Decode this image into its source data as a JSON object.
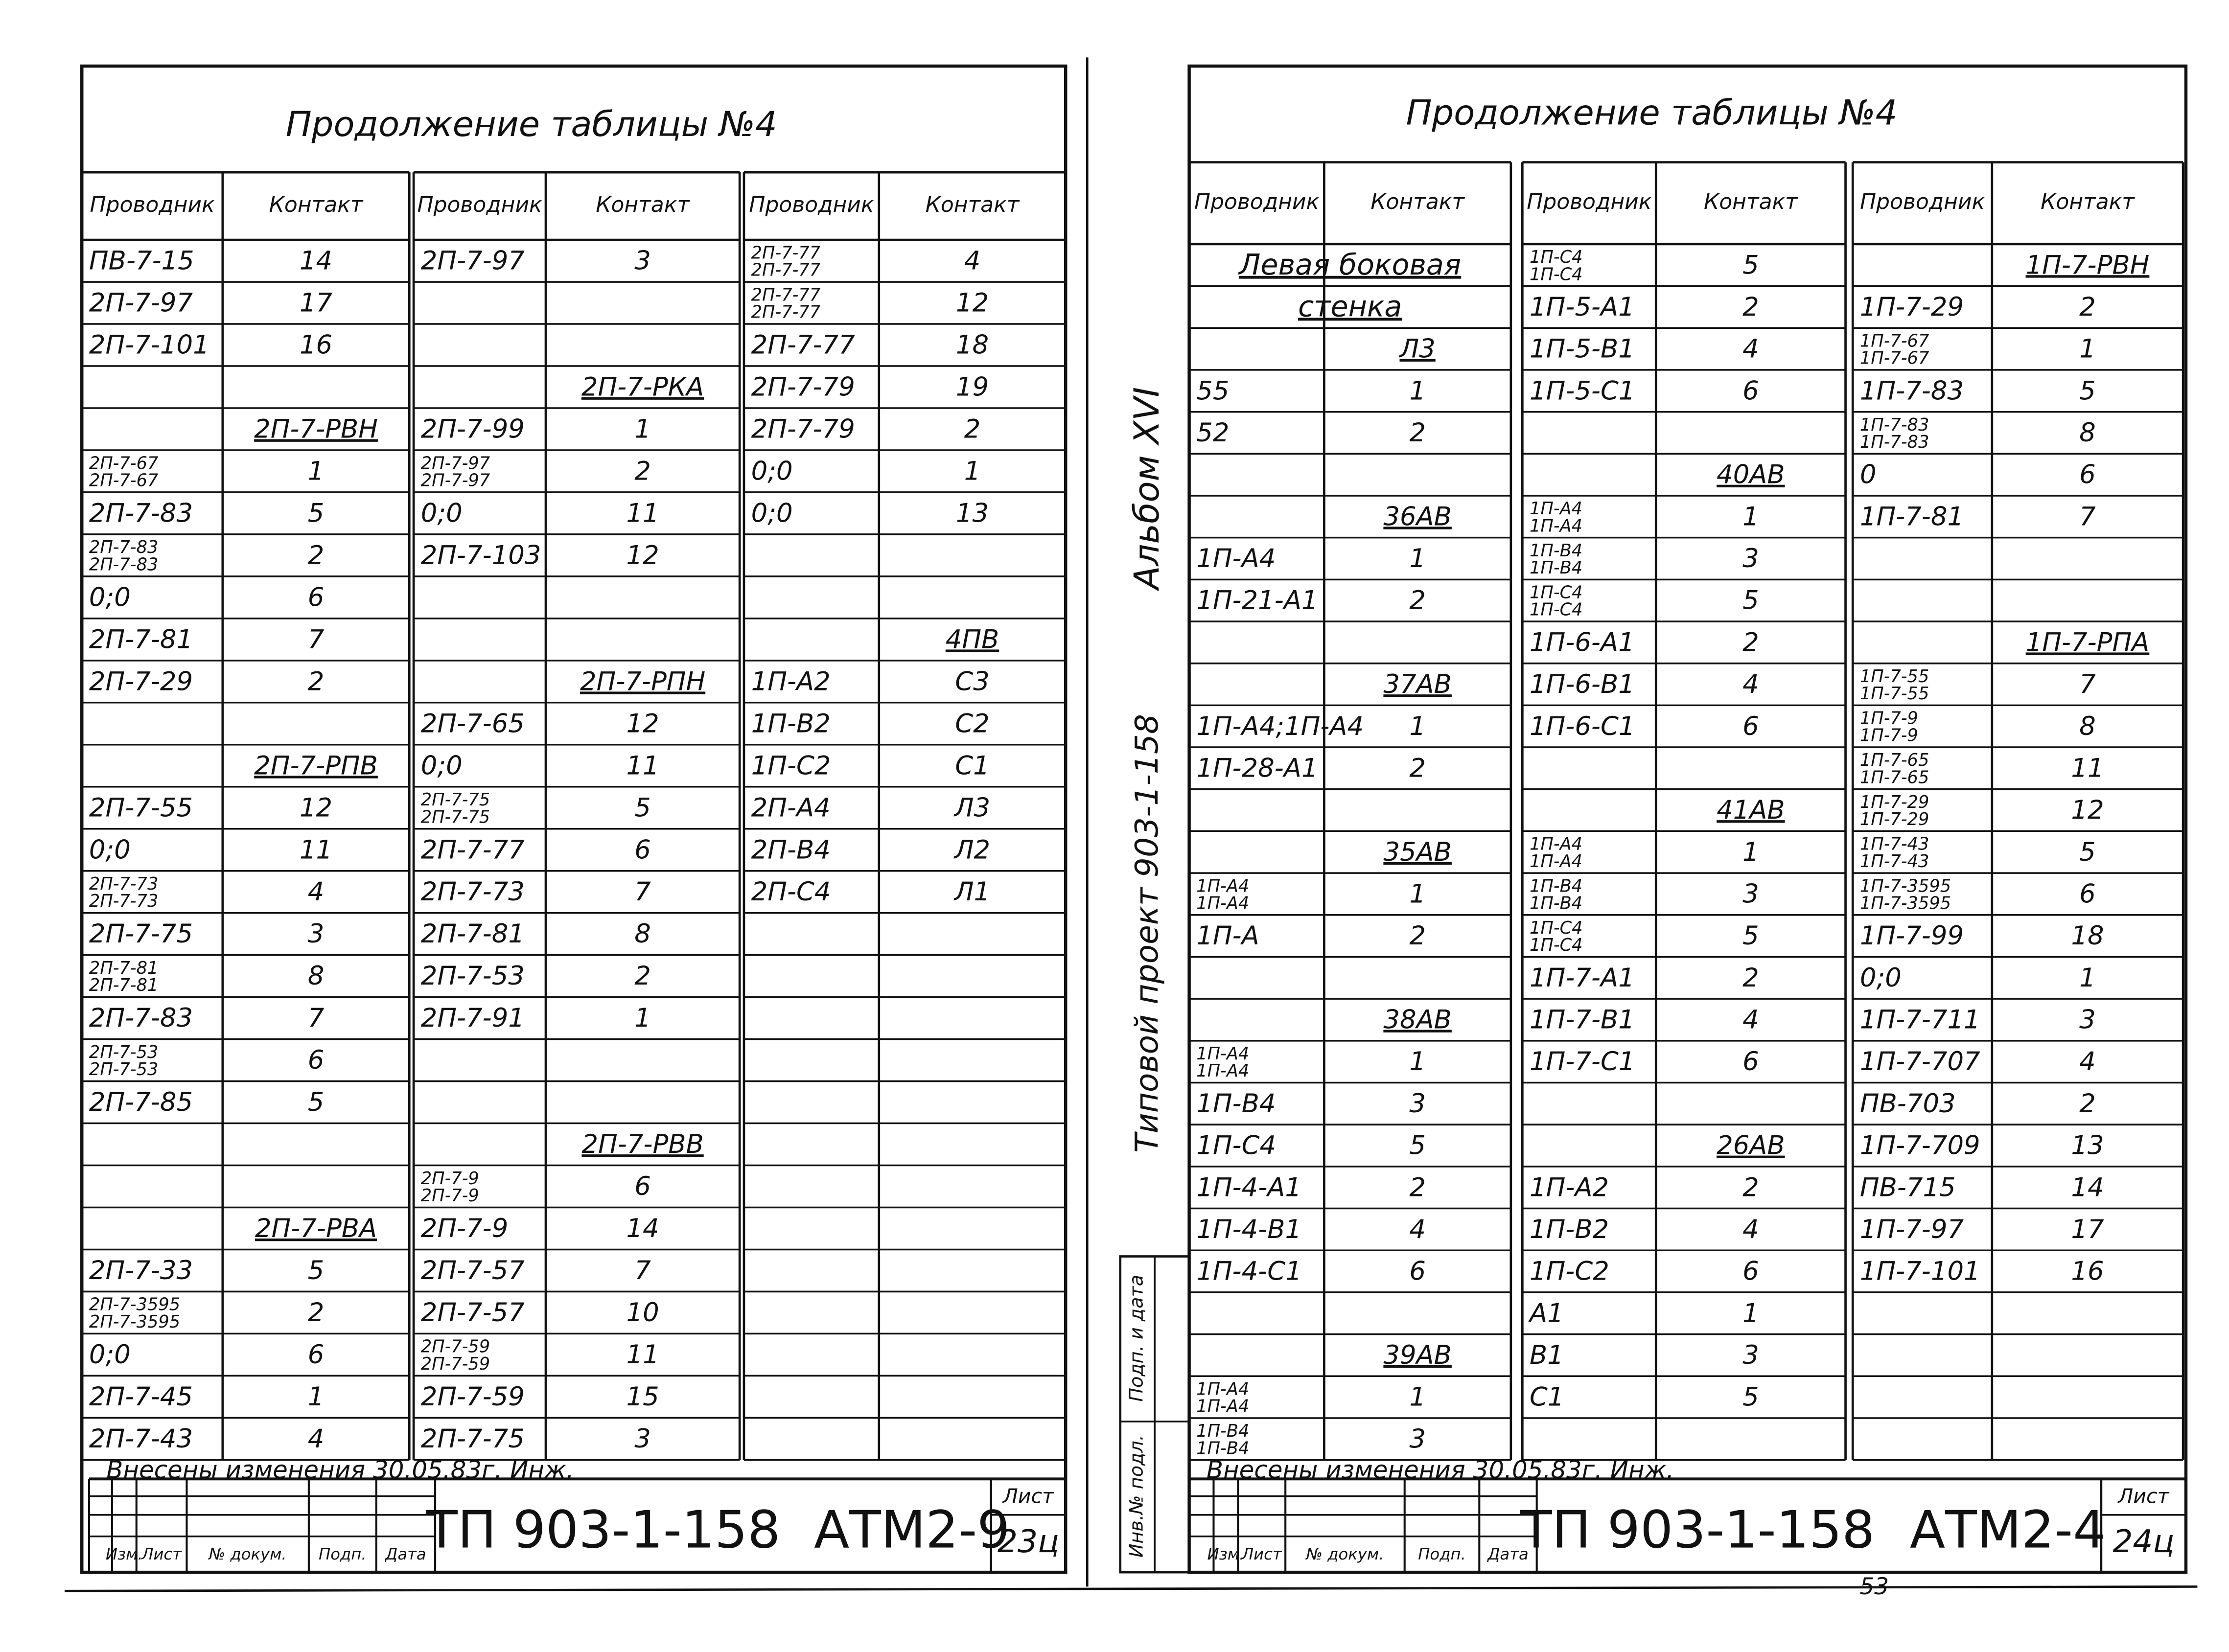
{
  "left_page": {
    "title": "Продолжение таблицы №4",
    "tables": [
      {
        "headers": [
          "Проводник",
          "Контакт"
        ],
        "rows": [
          [
            "ПВ-7-15",
            "14"
          ],
          [
            "2П-7-97",
            "17"
          ],
          [
            "2П-7-101",
            "16"
          ],
          [
            null,
            null
          ],
          [
            null,
            "2П-7-РВН"
          ],
          [
            [
              "2П-7-67",
              "2П-7-67"
            ],
            "1"
          ],
          [
            "2П-7-83",
            "5"
          ],
          [
            [
              "2П-7-83",
              "2П-7-83"
            ],
            "2"
          ],
          [
            "0;0",
            "6"
          ],
          [
            "2П-7-81",
            "7"
          ],
          [
            "2П-7-29",
            "2"
          ],
          [
            null,
            null
          ],
          [
            null,
            "2П-7-РПВ"
          ],
          [
            "2П-7-55",
            "12"
          ],
          [
            "0;0",
            "11"
          ],
          [
            [
              "2П-7-73",
              "2П-7-73"
            ],
            "4"
          ],
          [
            "2П-7-75",
            "3"
          ],
          [
            [
              "2П-7-81",
              "2П-7-81"
            ],
            "8"
          ],
          [
            "2П-7-83",
            "7"
          ],
          [
            [
              "2П-7-53",
              "2П-7-53"
            ],
            "6"
          ],
          [
            "2П-7-85",
            "5"
          ],
          [
            null,
            null
          ],
          [
            null,
            null
          ],
          [
            null,
            "2П-7-РВА"
          ],
          [
            "2П-7-33",
            "5"
          ],
          [
            [
              "2П-7-3595",
              "2П-7-3595"
            ],
            "2"
          ],
          [
            "0;0",
            "6"
          ],
          [
            "2П-7-45",
            "1"
          ],
          [
            "2П-7-43",
            "4"
          ]
        ]
      },
      {
        "headers": [
          "Проводник",
          "Контакт"
        ],
        "rows": [
          [
            "2П-7-97",
            "3"
          ],
          [
            null,
            null
          ],
          [
            null,
            null
          ],
          [
            null,
            "2П-7-РКА"
          ],
          [
            "2П-7-99",
            "1"
          ],
          [
            [
              "2П-7-97",
              "2П-7-97"
            ],
            "2"
          ],
          [
            "0;0",
            "11"
          ],
          [
            "2П-7-103",
            "12"
          ],
          [
            null,
            null
          ],
          [
            null,
            null
          ],
          [
            null,
            "2П-7-РПН"
          ],
          [
            "2П-7-65",
            "12"
          ],
          [
            "0;0",
            "11"
          ],
          [
            [
              "2П-7-75",
              "2П-7-75"
            ],
            "5"
          ],
          [
            "2П-7-77",
            "6"
          ],
          [
            "2П-7-73",
            "7"
          ],
          [
            "2П-7-81",
            "8"
          ],
          [
            "2П-7-53",
            "2"
          ],
          [
            "2П-7-91",
            "1"
          ],
          [
            null,
            null
          ],
          [
            null,
            null
          ],
          [
            null,
            "2П-7-РВВ"
          ],
          [
            [
              "2П-7-9",
              "2П-7-9"
            ],
            "6"
          ],
          [
            "2П-7-9",
            "14"
          ],
          [
            "2П-7-57",
            "7"
          ],
          [
            "2П-7-57",
            "10"
          ],
          [
            [
              "2П-7-59",
              "2П-7-59"
            ],
            "11"
          ],
          [
            "2П-7-59",
            "15"
          ],
          [
            "2П-7-75",
            "3"
          ]
        ]
      },
      {
        "headers": [
          "Проводник",
          "Контакт"
        ],
        "rows": [
          [
            [
              "2П-7-77",
              "2П-7-77"
            ],
            "4"
          ],
          [
            [
              "2П-7-77",
              "2П-7-77"
            ],
            "12"
          ],
          [
            "2П-7-77",
            "18"
          ],
          [
            "2П-7-79",
            "19"
          ],
          [
            "2П-7-79",
            "2"
          ],
          [
            "0;0",
            "1"
          ],
          [
            "0;0",
            "13"
          ],
          [
            null,
            null
          ],
          [
            null,
            null
          ],
          [
            null,
            "4ПВ"
          ],
          [
            "1П-А2",
            "С3"
          ],
          [
            "1П-В2",
            "С2"
          ],
          [
            "1П-С2",
            "С1"
          ],
          [
            "2П-А4",
            "Л3"
          ],
          [
            "2П-В4",
            "Л2"
          ],
          [
            "2П-С4",
            "Л1"
          ],
          [
            null,
            null
          ],
          [
            null,
            null
          ],
          [
            null,
            null
          ],
          [
            null,
            null
          ],
          [
            null,
            null
          ],
          [
            null,
            null
          ],
          [
            null,
            null
          ],
          [
            null,
            null
          ],
          [
            null,
            null
          ],
          [
            null,
            null
          ],
          [
            null,
            null
          ],
          [
            null,
            null
          ],
          [
            null,
            null
          ]
        ]
      }
    ],
    "note": "Внесены изменения 30.05.83г. Инж.",
    "stamp": {
      "code": "ТП 903-1-158",
      "mark": "АТМ2-9",
      "sheet_label": "Лист",
      "sheet": "23ц",
      "columns": [
        "Изм.",
        "Лист",
        "№ докум.",
        "Подп.",
        "Дата"
      ]
    }
  },
  "right_page": {
    "title": "Продолжение таблицы №4",
    "tables": [
      {
        "headers": [
          "Проводник",
          "Контакт"
        ],
        "rows": [
          [
            "Левая боковая",
            null
          ],
          [
            "стенка",
            null
          ],
          [
            null,
            "Л3"
          ],
          [
            "55",
            "1"
          ],
          [
            "52",
            "2"
          ],
          [
            null,
            null
          ],
          [
            null,
            "36АВ"
          ],
          [
            "1П-А4",
            "1"
          ],
          [
            "1П-21-А1",
            "2"
          ],
          [
            null,
            null
          ],
          [
            null,
            "37АВ"
          ],
          [
            "1П-А4;1П-А4",
            "1"
          ],
          [
            "1П-28-А1",
            "2"
          ],
          [
            null,
            null
          ],
          [
            null,
            "35АВ"
          ],
          [
            [
              "1П-А4",
              "1П-А4"
            ],
            "1"
          ],
          [
            "1П-А",
            "2"
          ],
          [
            null,
            null
          ],
          [
            null,
            "38АВ"
          ],
          [
            [
              "1П-А4",
              "1П-А4"
            ],
            "1"
          ],
          [
            "1П-В4",
            "3"
          ],
          [
            "1П-С4",
            "5"
          ],
          [
            "1П-4-А1",
            "2"
          ],
          [
            "1П-4-В1",
            "4"
          ],
          [
            "1П-4-С1",
            "6"
          ],
          [
            null,
            null
          ],
          [
            null,
            "39АВ"
          ],
          [
            [
              "1П-А4",
              "1П-А4"
            ],
            "1"
          ],
          [
            [
              "1П-В4",
              "1П-В4"
            ],
            "3"
          ]
        ]
      },
      {
        "headers": [
          "Проводник",
          "Контакт"
        ],
        "rows": [
          [
            [
              "1П-С4",
              "1П-С4"
            ],
            "5"
          ],
          [
            "1П-5-А1",
            "2"
          ],
          [
            "1П-5-В1",
            "4"
          ],
          [
            "1П-5-С1",
            "6"
          ],
          [
            null,
            null
          ],
          [
            null,
            "40АВ"
          ],
          [
            [
              "1П-А4",
              "1П-А4"
            ],
            "1"
          ],
          [
            [
              "1П-В4",
              "1П-В4"
            ],
            "3"
          ],
          [
            [
              "1П-С4",
              "1П-С4"
            ],
            "5"
          ],
          [
            "1П-6-А1",
            "2"
          ],
          [
            "1П-6-В1",
            "4"
          ],
          [
            "1П-6-С1",
            "6"
          ],
          [
            null,
            null
          ],
          [
            null,
            "41АВ"
          ],
          [
            [
              "1П-А4",
              "1П-А4"
            ],
            "1"
          ],
          [
            [
              "1П-В4",
              "1П-В4"
            ],
            "3"
          ],
          [
            [
              "1П-С4",
              "1П-С4"
            ],
            "5"
          ],
          [
            "1П-7-А1",
            "2"
          ],
          [
            "1П-7-В1",
            "4"
          ],
          [
            "1П-7-С1",
            "6"
          ],
          [
            null,
            null
          ],
          [
            null,
            "26АВ"
          ],
          [
            "1П-А2",
            "2"
          ],
          [
            "1П-В2",
            "4"
          ],
          [
            "1П-С2",
            "6"
          ],
          [
            "А1",
            "1"
          ],
          [
            "В1",
            "3"
          ],
          [
            "С1",
            "5"
          ],
          [
            null,
            null
          ]
        ]
      },
      {
        "headers": [
          "Проводник",
          "Контакт"
        ],
        "rows": [
          [
            null,
            "1П-7-РВН"
          ],
          [
            "1П-7-29",
            "2"
          ],
          [
            [
              "1П-7-67",
              "1П-7-67"
            ],
            "1"
          ],
          [
            "1П-7-83",
            "5"
          ],
          [
            [
              "1П-7-83",
              "1П-7-83"
            ],
            "8"
          ],
          [
            "0",
            "6"
          ],
          [
            "1П-7-81",
            "7"
          ],
          [
            null,
            null
          ],
          [
            null,
            null
          ],
          [
            null,
            "1П-7-РПА"
          ],
          [
            [
              "1П-7-55",
              "1П-7-55"
            ],
            "7"
          ],
          [
            [
              "1П-7-9",
              "1П-7-9"
            ],
            "8"
          ],
          [
            [
              "1П-7-65",
              "1П-7-65"
            ],
            "11"
          ],
          [
            [
              "1П-7-29",
              "1П-7-29"
            ],
            "12"
          ],
          [
            [
              "1П-7-43",
              "1П-7-43"
            ],
            "5"
          ],
          [
            [
              "1П-7-3595",
              "1П-7-3595"
            ],
            "6"
          ],
          [
            "1П-7-99",
            "18"
          ],
          [
            "0;0",
            "1"
          ],
          [
            "1П-7-711",
            "3"
          ],
          [
            "1П-7-707",
            "4"
          ],
          [
            "ПВ-703",
            "2"
          ],
          [
            "1П-7-709",
            "13"
          ],
          [
            "ПВ-715",
            "14"
          ],
          [
            "1П-7-97",
            "17"
          ],
          [
            "1П-7-101",
            "16"
          ],
          [
            null,
            null
          ],
          [
            null,
            null
          ],
          [
            null,
            null
          ],
          [
            null,
            null
          ]
        ]
      }
    ],
    "note": "Внесены изменения 30.05.83г. Инж.",
    "stamp": {
      "code": "ТП 903-1-158",
      "mark": "АТМ2-4",
      "sheet_label": "Лист",
      "sheet": "24ц",
      "columns": [
        "Изм.",
        "Лист",
        "№ докум.",
        "Подп.",
        "Дата"
      ]
    }
  },
  "side": {
    "album": "Альбом XVI",
    "project": "Типовой проект 903-1-158",
    "signature": "Подп. и дата",
    "inventory": "Инв.№ подл."
  },
  "page_number": "53"
}
